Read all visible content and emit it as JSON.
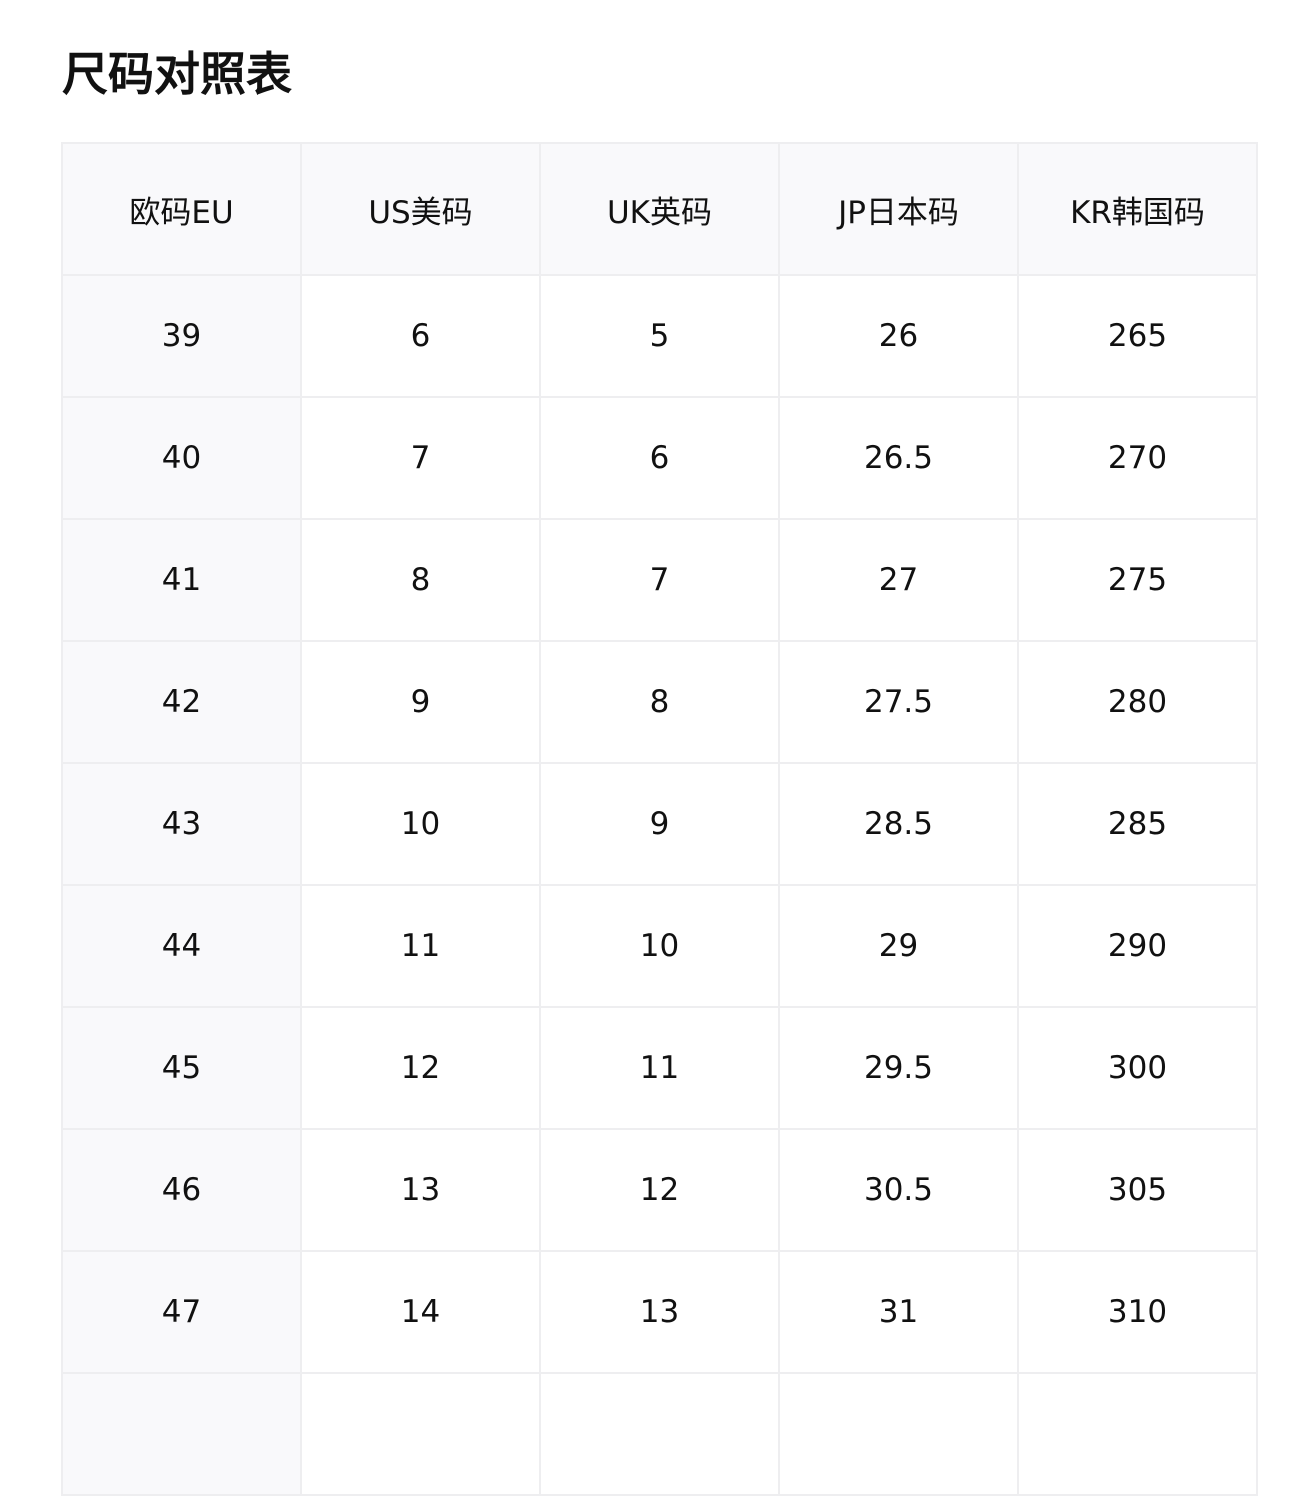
{
  "title": "尺码对照表",
  "columns": [
    "欧码EU",
    "US美码",
    "UK英码",
    "JP日本码",
    "KR韩国码"
  ],
  "rows": [
    [
      "39",
      "6",
      "5",
      "26",
      "265"
    ],
    [
      "40",
      "7",
      "6",
      "26.5",
      "270"
    ],
    [
      "41",
      "8",
      "7",
      "27",
      "275"
    ],
    [
      "42",
      "9",
      "8",
      "27.5",
      "280"
    ],
    [
      "43",
      "10",
      "9",
      "28.5",
      "285"
    ],
    [
      "44",
      "11",
      "10",
      "29",
      "290"
    ],
    [
      "45",
      "12",
      "11",
      "29.5",
      "300"
    ],
    [
      "46",
      "13",
      "12",
      "30.5",
      "305"
    ],
    [
      "47",
      "14",
      "13",
      "31",
      "310"
    ],
    [
      "",
      "",
      "",
      "",
      ""
    ]
  ],
  "colors": {
    "header_bg": "#f9f9fb",
    "border": "#eeeef0"
  }
}
